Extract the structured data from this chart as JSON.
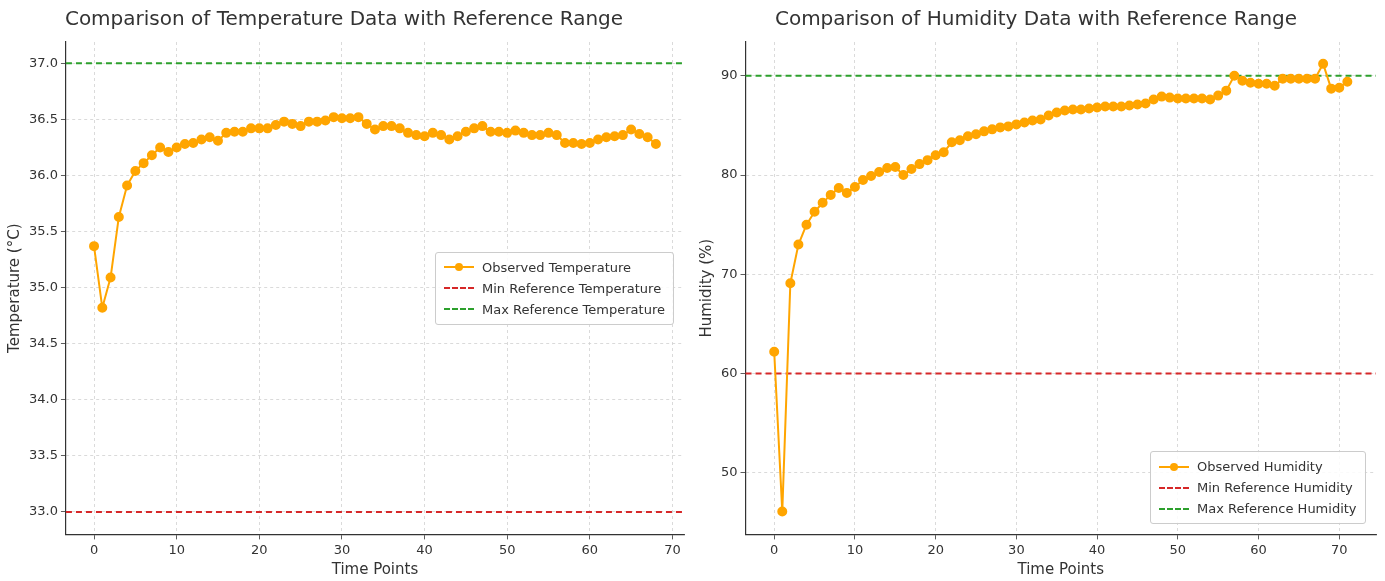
{
  "chart_data": [
    {
      "type": "line",
      "title": "Comparison of Temperature Data with Reference Range",
      "xlabel": "Time Points",
      "ylabel": "Temperature (°C)",
      "x": [
        0,
        1,
        2,
        3,
        4,
        5,
        6,
        7,
        8,
        9,
        10,
        11,
        12,
        13,
        14,
        15,
        16,
        17,
        18,
        19,
        20,
        21,
        22,
        23,
        24,
        25,
        26,
        27,
        28,
        29,
        30,
        31,
        32,
        33,
        34,
        35,
        36,
        37,
        38,
        39,
        40,
        41,
        42,
        43,
        44,
        45,
        46,
        47,
        48,
        49,
        50,
        51,
        52,
        53,
        54,
        55,
        56,
        57,
        58,
        59,
        60,
        61,
        62,
        63,
        64,
        65,
        66,
        67,
        68
      ],
      "series": [
        {
          "name": "Observed Temperature",
          "color": "#ffa500",
          "values": [
            35.37,
            34.82,
            35.09,
            35.63,
            35.91,
            36.04,
            36.11,
            36.18,
            36.25,
            36.21,
            36.25,
            36.28,
            36.29,
            36.32,
            36.34,
            36.31,
            36.38,
            36.39,
            36.39,
            36.42,
            36.42,
            36.42,
            36.45,
            36.48,
            36.46,
            36.44,
            36.48,
            36.48,
            36.49,
            36.52,
            36.51,
            36.51,
            36.52,
            36.46,
            36.41,
            36.44,
            36.44,
            36.42,
            36.38,
            36.36,
            36.35,
            36.38,
            36.36,
            36.32,
            36.35,
            36.39,
            36.42,
            36.44,
            36.39,
            36.39,
            36.38,
            36.4,
            36.38,
            36.36,
            36.36,
            36.38,
            36.36,
            36.29,
            36.29,
            36.28,
            36.29,
            36.32,
            36.34,
            36.35,
            36.36,
            36.41,
            36.37,
            36.34,
            36.28
          ]
        }
      ],
      "ref_lines": [
        {
          "axis": "y",
          "value": 33,
          "label": "Min Reference Temperature",
          "color": "#d62728",
          "line_style": "dashed"
        },
        {
          "axis": "y",
          "value": 37,
          "label": "Max Reference Temperature",
          "color": "#2ca02c",
          "line_style": "dashed"
        }
      ],
      "xlim": [
        -3.4,
        71.4
      ],
      "xticks": [
        0,
        10,
        20,
        30,
        40,
        50,
        60,
        70
      ],
      "ylim": [
        32.8,
        37.19
      ],
      "yticks": [
        {
          "value": 33,
          "label": "33.0"
        },
        {
          "value": 33.5,
          "label": "33.5"
        },
        {
          "value": 34,
          "label": "34.0"
        },
        {
          "value": 34.5,
          "label": "34.5"
        },
        {
          "value": 35,
          "label": "35.0"
        },
        {
          "value": 35.5,
          "label": "35.5"
        },
        {
          "value": 36,
          "label": "36.0"
        },
        {
          "value": 36.5,
          "label": "36.5"
        },
        {
          "value": 37,
          "label": "37.0"
        }
      ],
      "grid": true,
      "legend": "right",
      "marker": "circle"
    },
    {
      "type": "line",
      "title": "Comparison of Humidity Data with Reference Range",
      "xlabel": "Time Points",
      "ylabel": "Humidity (%)",
      "x": [
        0,
        1,
        2,
        3,
        4,
        5,
        6,
        7,
        8,
        9,
        10,
        11,
        12,
        13,
        14,
        15,
        16,
        17,
        18,
        19,
        20,
        21,
        22,
        23,
        24,
        25,
        26,
        27,
        28,
        29,
        30,
        31,
        32,
        33,
        34,
        35,
        36,
        37,
        38,
        39,
        40,
        41,
        42,
        43,
        44,
        45,
        46,
        47,
        48,
        49,
        50,
        51,
        52,
        53,
        54,
        55,
        56,
        57,
        58,
        59,
        60,
        61,
        62,
        63,
        64,
        65,
        66,
        67,
        68,
        69,
        70,
        71
      ],
      "series": [
        {
          "name": "Observed Humidity",
          "color": "#ffa500",
          "values": [
            62.2,
            46.1,
            69.1,
            73,
            75,
            76.3,
            77.2,
            78,
            78.7,
            78.2,
            78.8,
            79.5,
            79.9,
            80.3,
            80.7,
            80.8,
            80,
            80.6,
            81.1,
            81.5,
            82,
            82.3,
            83.3,
            83.5,
            83.9,
            84.1,
            84.4,
            84.6,
            84.8,
            84.9,
            85.1,
            85.3,
            85.5,
            85.6,
            86,
            86.3,
            86.5,
            86.6,
            86.6,
            86.7,
            86.8,
            86.9,
            86.9,
            86.9,
            87,
            87.1,
            87.2,
            87.6,
            87.9,
            87.8,
            87.7,
            87.7,
            87.7,
            87.7,
            87.6,
            88,
            88.5,
            90,
            89.5,
            89.3,
            89.2,
            89.2,
            89,
            89.7,
            89.7,
            89.7,
            89.7,
            89.7,
            91.2,
            88.7,
            88.8,
            89.4
          ]
        }
      ],
      "ref_lines": [
        {
          "axis": "y",
          "value": 60,
          "label": "Min Reference Humidity",
          "color": "#d62728",
          "line_style": "dashed"
        },
        {
          "axis": "y",
          "value": 90,
          "label": "Max Reference Humidity",
          "color": "#2ca02c",
          "line_style": "dashed"
        }
      ],
      "xlim": [
        -3.55,
        74.55
      ],
      "xticks": [
        0,
        10,
        20,
        30,
        40,
        50,
        60,
        70
      ],
      "ylim": [
        43.8,
        93.4
      ],
      "yticks": [
        50,
        60,
        70,
        80,
        90
      ],
      "grid": true,
      "legend": "bottom right",
      "marker": "circle"
    }
  ]
}
